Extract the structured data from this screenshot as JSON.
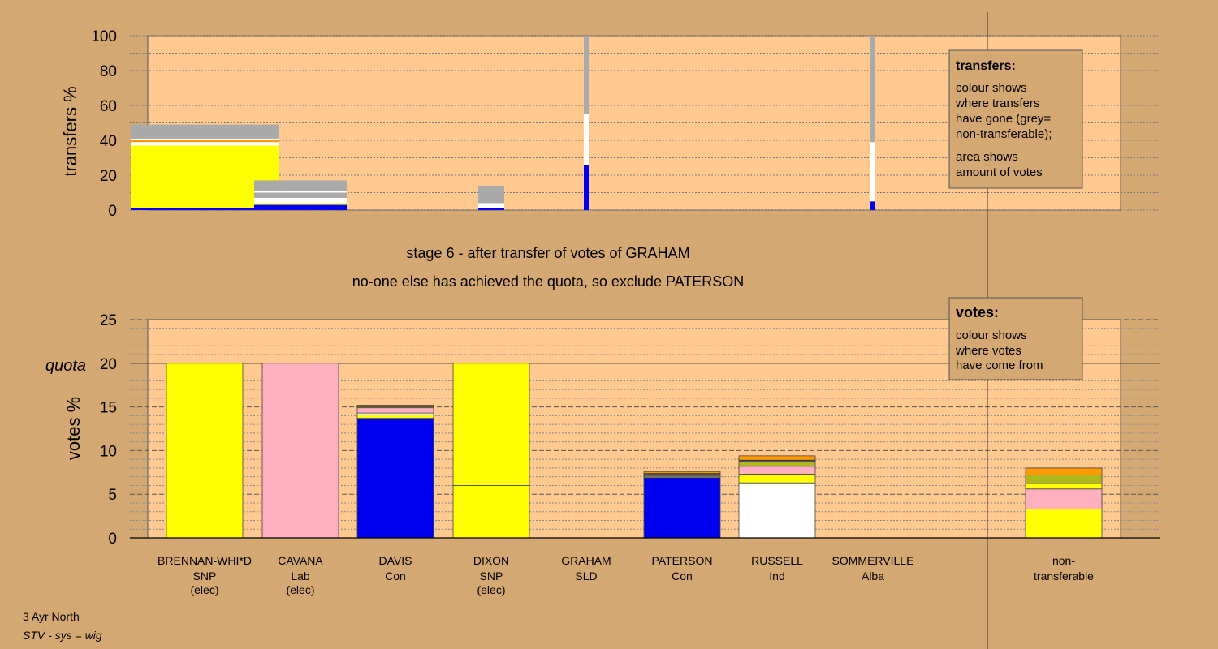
{
  "colors": {
    "background": "#d4a873",
    "plot_area": "#ffc990",
    "SNP": "#ffff00",
    "Lab": "#ffb0c0",
    "Con": "#0000ee",
    "Ind": "#ffffff",
    "SLD": "#ff9900",
    "Alba": "#b0b820",
    "nontransferable": "#aaaaaa"
  },
  "stage_line": "stage 6 - after transfer of votes of GRAHAM",
  "exclude_line": "no-one else has achieved the quota, so exclude PATERSON",
  "transfers_legend": {
    "title": "transfers:",
    "line1": "colour shows",
    "line2": "where transfers",
    "line3": "have gone (grey=",
    "line4": "non-transferable);",
    "line5": "area shows",
    "line6": "amount of votes"
  },
  "votes_legend": {
    "title": "votes:",
    "line1": "colour shows",
    "line2": "where votes",
    "line3": "have come from"
  },
  "footer": {
    "ward": "3 Ayr North",
    "system": "STV - sys = wig"
  },
  "chart_data": [
    {
      "type": "bar",
      "name": "transfers",
      "ylabel": "transfers %",
      "ylim": [
        0,
        100
      ],
      "yticks": [
        "0",
        "20",
        "40",
        "60",
        "80",
        "100"
      ],
      "stacks": [
        {
          "segments": [
            {
              "color": "Con",
              "value": 1
            },
            {
              "color": "SNP",
              "value": 36
            },
            {
              "color": "Ind",
              "value": 2
            },
            {
              "color": "SLD",
              "value": 1
            },
            {
              "color": "Ind",
              "value": 1
            },
            {
              "color": "nontransferable",
              "value": 8
            }
          ]
        },
        {
          "segments": [
            {
              "color": "Con",
              "value": 3
            },
            {
              "color": "SNP",
              "value": 1
            },
            {
              "color": "Ind",
              "value": 3
            },
            {
              "color": "nontransferable",
              "value": 3
            },
            {
              "color": "Ind",
              "value": 1
            },
            {
              "color": "nontransferable",
              "value": 6
            }
          ]
        },
        {
          "segments": [
            {
              "color": "Con",
              "value": 1
            },
            {
              "color": "Ind",
              "value": 3
            },
            {
              "color": "nontransferable",
              "value": 10
            }
          ]
        },
        {
          "segments": [
            {
              "color": "Con",
              "value": 26
            },
            {
              "color": "Ind",
              "value": 29
            },
            {
              "color": "nontransferable",
              "value": 45
            }
          ]
        },
        {
          "segments": [
            {
              "color": "Con",
              "value": 5
            },
            {
              "color": "Ind",
              "value": 34
            },
            {
              "color": "nontransferable",
              "value": 61
            }
          ]
        }
      ]
    },
    {
      "type": "bar",
      "name": "votes",
      "ylabel": "votes %",
      "ylim": [
        0,
        25
      ],
      "yticks": [
        "0",
        "5",
        "10",
        "15",
        "20",
        "25"
      ],
      "quota": 20,
      "quota_label": "quota",
      "candidates": [
        {
          "name": "BRENNAN-WHI*D",
          "party": "SNP",
          "status": "(elec)",
          "segments": [
            {
              "color": "SNP",
              "value": 20
            }
          ]
        },
        {
          "name": "CAVANA",
          "party": "Lab",
          "status": "(elec)",
          "segments": [
            {
              "color": "Lab",
              "value": 20
            }
          ]
        },
        {
          "name": "DAVIS",
          "party": "Con",
          "status": "",
          "segments": [
            {
              "color": "Con",
              "value": 13.7
            },
            {
              "color": "SNP",
              "value": 0.4
            },
            {
              "color": "Ind",
              "value": 0.2
            },
            {
              "color": "Lab",
              "value": 0.6
            },
            {
              "color": "Alba",
              "value": 0.1
            },
            {
              "color": "SLD",
              "value": 0.2
            }
          ]
        },
        {
          "name": "DIXON",
          "party": "SNP",
          "status": "(elec)",
          "segments": [
            {
              "color": "SNP",
              "value": 6
            },
            {
              "color": "SNP",
              "value": 14
            }
          ]
        },
        {
          "name": "GRAHAM",
          "party": "SLD",
          "status": "",
          "segments": [
            {
              "color": "SLD",
              "value": 0
            }
          ]
        },
        {
          "name": "PATERSON",
          "party": "Con",
          "status": "",
          "segments": [
            {
              "color": "Con",
              "value": 6.9
            },
            {
              "color": "SNP",
              "value": 0.1
            },
            {
              "color": "Ind",
              "value": 0.1
            },
            {
              "color": "Lab",
              "value": 0.2
            },
            {
              "color": "Alba",
              "value": 0.1
            },
            {
              "color": "SLD",
              "value": 0.2
            }
          ]
        },
        {
          "name": "RUSSELL",
          "party": "Ind",
          "status": "",
          "segments": [
            {
              "color": "Ind",
              "value": 6.3
            },
            {
              "color": "SNP",
              "value": 1
            },
            {
              "color": "Lab",
              "value": 0.9
            },
            {
              "color": "Alba",
              "value": 0.6
            },
            {
              "color": "Con",
              "value": 0.1
            },
            {
              "color": "SLD",
              "value": 0.5
            }
          ]
        },
        {
          "name": "SOMMERVILLE",
          "party": "Alba",
          "status": "",
          "segments": [
            {
              "color": "Alba",
              "value": 0
            }
          ]
        }
      ],
      "nontransferable": {
        "name": "non-",
        "name2": "transferable",
        "segments": [
          {
            "color": "SNP",
            "value": 3.3
          },
          {
            "color": "Lab",
            "value": 2.3
          },
          {
            "color": "SNP",
            "value": 0.6
          },
          {
            "color": "Alba",
            "value": 1
          },
          {
            "color": "SLD",
            "value": 0.8
          }
        ]
      }
    }
  ]
}
